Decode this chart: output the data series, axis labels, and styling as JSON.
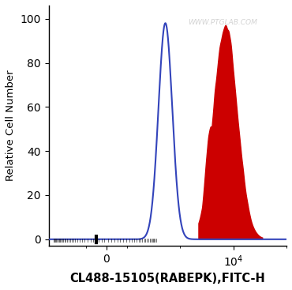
{
  "xlabel": "CL488-15105(RABEPK),FITC-H",
  "ylabel": "Relative Cell Number",
  "yticks": [
    0,
    20,
    40,
    60,
    80,
    100
  ],
  "watermark": "WWW.PTGLAB.COM",
  "background_color": "#ffffff",
  "blue_color": "#3344bb",
  "red_fill_color": "#cc0000",
  "xlabel_fontsize": 10.5,
  "ylabel_fontsize": 9.5,
  "tick_fontsize": 10
}
